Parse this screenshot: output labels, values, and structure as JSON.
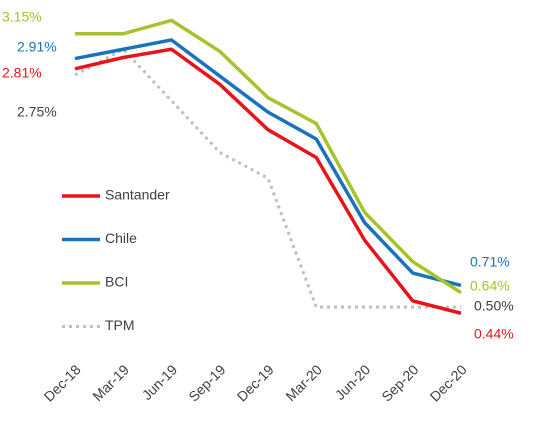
{
  "chart_data": {
    "type": "line",
    "categories": [
      "Dec-18",
      "Mar-19",
      "Jun-19",
      "Sep-19",
      "Dec-19",
      "Mar-20",
      "Jun-20",
      "Sep-20",
      "Dec-20"
    ],
    "series": [
      {
        "name": "Santander",
        "color": "#e8141b",
        "values": [
          2.81,
          2.92,
          3.0,
          2.66,
          2.22,
          1.95,
          1.15,
          0.56,
          0.44
        ],
        "value_labels": [
          "2.81%",
          null,
          null,
          null,
          null,
          null,
          null,
          null,
          "0.44%"
        ]
      },
      {
        "name": "Chile",
        "color": "#1a72bb",
        "values": [
          2.91,
          3.0,
          3.09,
          2.74,
          2.39,
          2.13,
          1.32,
          0.83,
          0.71
        ],
        "value_labels": [
          "2.91%",
          null,
          null,
          null,
          null,
          null,
          null,
          null,
          "0.71%"
        ]
      },
      {
        "name": "BCI",
        "color": "#a5c32a",
        "values": [
          3.15,
          3.15,
          3.28,
          2.98,
          2.53,
          2.28,
          1.42,
          0.94,
          0.64
        ],
        "value_labels": [
          "3.15%",
          null,
          null,
          null,
          null,
          null,
          null,
          null,
          "0.64%"
        ]
      },
      {
        "name": "TPM",
        "color": "#bfbfbf",
        "dashed": true,
        "values": [
          2.75,
          3.0,
          2.5,
          2.0,
          1.75,
          0.5,
          0.5,
          0.5,
          0.5
        ],
        "value_labels": [
          "2.75%",
          null,
          null,
          null,
          null,
          null,
          null,
          null,
          "0.50%"
        ]
      }
    ],
    "ylim": [
      0.2,
      3.4
    ]
  }
}
